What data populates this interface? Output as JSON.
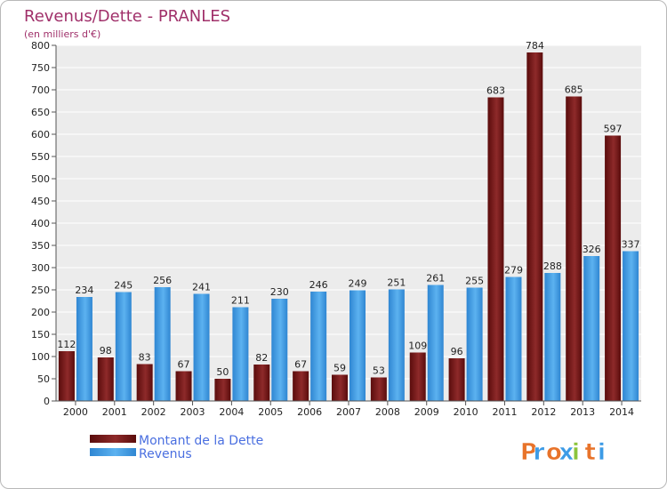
{
  "chart_data": {
    "type": "bar",
    "title": "Revenus/Dette - PRANLES",
    "subtitle": "(en milliers d'€)",
    "categories": [
      "2000",
      "2001",
      "2002",
      "2003",
      "2004",
      "2005",
      "2006",
      "2007",
      "2008",
      "2009",
      "2010",
      "2011",
      "2012",
      "2013",
      "2014"
    ],
    "series": [
      {
        "name": "Montant de la Dette",
        "color": "#7a1a1a",
        "values": [
          112,
          98,
          83,
          67,
          50,
          82,
          67,
          59,
          53,
          109,
          96,
          683,
          784,
          685,
          597
        ]
      },
      {
        "name": "Revenus",
        "color": "#3d9be6",
        "values": [
          234,
          245,
          256,
          241,
          211,
          230,
          246,
          249,
          251,
          261,
          255,
          279,
          288,
          326,
          337
        ]
      }
    ],
    "ylim": [
      0,
      800
    ],
    "yticks": [
      0,
      50,
      100,
      150,
      200,
      250,
      300,
      350,
      400,
      450,
      500,
      550,
      600,
      650,
      700,
      750,
      800
    ],
    "grid": true,
    "legend_position": "bottom-left"
  },
  "logo": {
    "letters": [
      "P",
      "r",
      "o",
      "x",
      "i",
      "t",
      "i"
    ],
    "colors": [
      "#e8732a",
      "#3d9be6",
      "#e8732a",
      "#3d9be6",
      "#8cc43c",
      "#e8732a",
      "#3d9be6"
    ]
  }
}
